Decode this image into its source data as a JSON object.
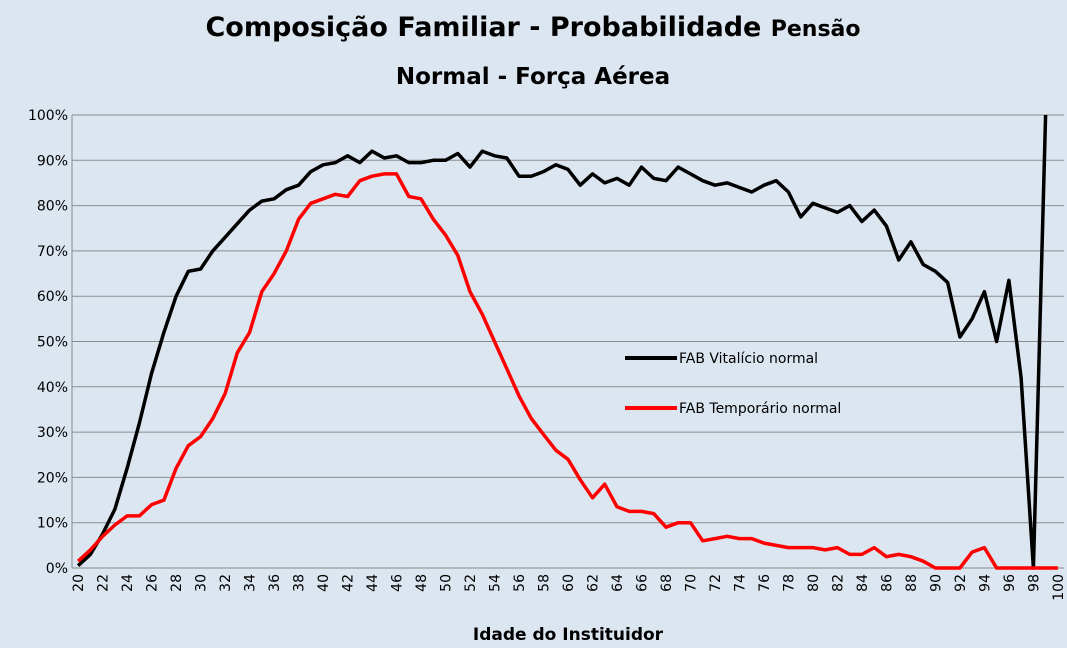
{
  "chart_data": {
    "type": "line",
    "title": [
      "Composição Familiar - Probabilidade",
      "Pensão"
    ],
    "subtitle": "Normal - Força Aérea",
    "x_label": "Idade do Instituidor",
    "categories": [
      20,
      null,
      22,
      null,
      24,
      null,
      26,
      null,
      28,
      null,
      30,
      null,
      32,
      null,
      34,
      null,
      36,
      null,
      38,
      null,
      40,
      null,
      42,
      null,
      44,
      null,
      46,
      null,
      48,
      null,
      50,
      null,
      52,
      null,
      54,
      null,
      56,
      null,
      58,
      null,
      60,
      null,
      62,
      null,
      64,
      null,
      66,
      null,
      68,
      null,
      70,
      null,
      72,
      null,
      74,
      null,
      76,
      null,
      78,
      null,
      80,
      null,
      82,
      null,
      84,
      null,
      86,
      null,
      88,
      null,
      90,
      null,
      92,
      null,
      94,
      null,
      96,
      null,
      98,
      null,
      100
    ],
    "ylim": [
      0,
      100
    ],
    "yticks": [
      {
        "value": 0,
        "label": "0%"
      },
      {
        "value": 10,
        "label": "10%"
      },
      {
        "value": 20,
        "label": "20%"
      },
      {
        "value": 30,
        "label": "30%"
      },
      {
        "value": 40,
        "label": "40%"
      },
      {
        "value": 50,
        "label": "50%"
      },
      {
        "value": 60,
        "label": "60%"
      },
      {
        "value": 70,
        "label": "70%"
      },
      {
        "value": 80,
        "label": "80%"
      },
      {
        "value": 90,
        "label": "90%"
      },
      {
        "value": 100,
        "label": "100%"
      }
    ],
    "grid": true,
    "legend": "center-right",
    "series": [
      {
        "name": "FAB Vitalício normal",
        "color": "#000000",
        "values": [
          0.5,
          3,
          7.5,
          13,
          22,
          32,
          43,
          52,
          60,
          65.5,
          66,
          70,
          73,
          76,
          79,
          81,
          81.5,
          83.5,
          84.5,
          87.5,
          89,
          89.5,
          91,
          89.5,
          92,
          90.5,
          91,
          89.5,
          89.5,
          90,
          90,
          91.5,
          88.5,
          92,
          91,
          90.5,
          86.5,
          86.5,
          87.5,
          89,
          88,
          84.5,
          87,
          85,
          86,
          84.5,
          88.5,
          86,
          85.5,
          88.5,
          87,
          85.5,
          84.5,
          85,
          84,
          83,
          84.5,
          85.5,
          83,
          77.5,
          80.5,
          79.5,
          78.5,
          80,
          76.5,
          79,
          75.5,
          68,
          72,
          67,
          65.5,
          63,
          51,
          55,
          61,
          50,
          63.5,
          42,
          0,
          100,
          null
        ]
      },
      {
        "name": "FAB Temporário normal",
        "color": "#ff0000",
        "values": [
          1.5,
          4,
          7,
          9.5,
          11.5,
          11.5,
          14,
          15,
          22,
          27,
          29,
          33,
          38.5,
          47.5,
          52,
          61,
          65,
          70,
          77,
          80.5,
          81.5,
          82.5,
          82,
          85.5,
          86.5,
          87,
          87,
          82,
          81.5,
          77,
          73.5,
          69,
          61,
          56,
          50,
          44,
          38,
          33,
          29.5,
          26,
          24,
          19.5,
          15.5,
          18.5,
          13.5,
          12.5,
          12.5,
          12,
          9,
          10,
          10,
          6,
          6.5,
          7,
          6.5,
          6.5,
          5.5,
          5,
          4.5,
          4.5,
          4.5,
          4,
          4.5,
          3,
          3,
          4.5,
          2.5,
          3,
          2.5,
          1.5,
          0,
          0,
          0,
          3.5,
          4.5,
          0,
          0,
          0,
          0,
          0,
          0
        ]
      }
    ]
  }
}
